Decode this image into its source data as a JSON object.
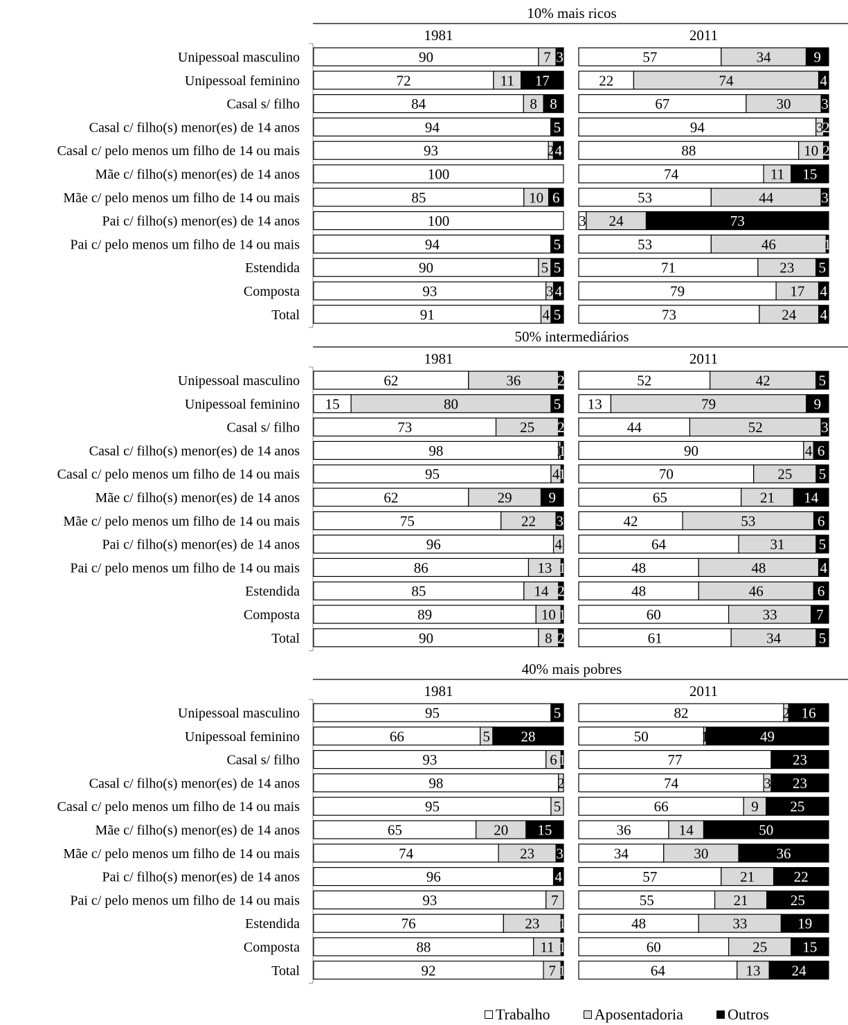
{
  "chart_data": {
    "type": "bar",
    "stacked": true,
    "orientation": "horizontal",
    "categories": [
      "Unipessoal masculino",
      "Unipessoal feminino",
      "Casal s/ filho",
      "Casal c/ filho(s) menor(es) de 14 anos",
      "Casal c/ pelo menos um filho de 14 ou mais",
      "Mãe c/ filho(s) menor(es) de 14 anos",
      "Mãe c/ pelo menos um filho de 14 ou mais",
      "Pai c/ filho(s) menor(es) de 14 anos",
      "Pai c/ pelo menos um filho de 14 ou mais",
      "Estendida",
      "Composta",
      "Total"
    ],
    "series_names": [
      "Trabalho",
      "Aposentadoria",
      "Outros"
    ],
    "colors": {
      "Trabalho": "#ffffff",
      "Aposentadoria": "#d9d9d9",
      "Outros": "#000000"
    },
    "xlim": [
      0,
      100
    ],
    "legend_position": "bottom-right",
    "panels": [
      {
        "title": "10% mais ricos",
        "years": [
          {
            "label": "1981",
            "rows": [
              [
                90,
                7,
                3
              ],
              [
                72,
                11,
                17
              ],
              [
                84,
                8,
                8
              ],
              [
                94,
                0,
                5
              ],
              [
                93,
                2,
                4
              ],
              [
                100,
                0,
                0
              ],
              [
                85,
                10,
                6
              ],
              [
                100,
                0,
                0
              ],
              [
                94,
                0,
                5
              ],
              [
                90,
                5,
                5
              ],
              [
                93,
                3,
                4
              ],
              [
                91,
                4,
                5
              ]
            ]
          },
          {
            "label": "2011",
            "rows": [
              [
                57,
                34,
                9
              ],
              [
                22,
                74,
                4
              ],
              [
                67,
                30,
                3
              ],
              [
                94,
                3,
                2
              ],
              [
                88,
                10,
                2
              ],
              [
                74,
                11,
                15
              ],
              [
                53,
                44,
                3
              ],
              [
                3,
                24,
                73
              ],
              [
                53,
                46,
                1
              ],
              [
                71,
                23,
                5
              ],
              [
                79,
                17,
                4
              ],
              [
                73,
                24,
                4
              ]
            ]
          }
        ]
      },
      {
        "title": "50% intermediários",
        "years": [
          {
            "label": "1981",
            "rows": [
              [
                62,
                36,
                2
              ],
              [
                15,
                80,
                5
              ],
              [
                73,
                25,
                2
              ],
              [
                98,
                1,
                1
              ],
              [
                95,
                4,
                1
              ],
              [
                62,
                29,
                9
              ],
              [
                75,
                22,
                3
              ],
              [
                96,
                4,
                0
              ],
              [
                86,
                13,
                1
              ],
              [
                85,
                14,
                2
              ],
              [
                89,
                10,
                1
              ],
              [
                90,
                8,
                2
              ]
            ]
          },
          {
            "label": "2011",
            "rows": [
              [
                52,
                42,
                5
              ],
              [
                13,
                79,
                9
              ],
              [
                44,
                52,
                3
              ],
              [
                90,
                4,
                6
              ],
              [
                70,
                25,
                5
              ],
              [
                65,
                21,
                14
              ],
              [
                42,
                53,
                6
              ],
              [
                64,
                31,
                5
              ],
              [
                48,
                48,
                4
              ],
              [
                48,
                46,
                6
              ],
              [
                60,
                33,
                7
              ],
              [
                61,
                34,
                5
              ]
            ]
          }
        ]
      },
      {
        "title": "40% mais pobres",
        "years": [
          {
            "label": "1981",
            "rows": [
              [
                95,
                0,
                5
              ],
              [
                66,
                5,
                28
              ],
              [
                93,
                6,
                1
              ],
              [
                98,
                2,
                0
              ],
              [
                95,
                5,
                0
              ],
              [
                65,
                20,
                15
              ],
              [
                74,
                23,
                3
              ],
              [
                96,
                0,
                4
              ],
              [
                93,
                7,
                0
              ],
              [
                76,
                23,
                1
              ],
              [
                88,
                11,
                1
              ],
              [
                92,
                7,
                1
              ]
            ]
          },
          {
            "label": "2011",
            "rows": [
              [
                82,
                2,
                16
              ],
              [
                50,
                1,
                49
              ],
              [
                77,
                0,
                23
              ],
              [
                74,
                3,
                23
              ],
              [
                66,
                9,
                25
              ],
              [
                36,
                14,
                50
              ],
              [
                34,
                30,
                36
              ],
              [
                57,
                21,
                22
              ],
              [
                55,
                21,
                25
              ],
              [
                48,
                33,
                19
              ],
              [
                60,
                25,
                15
              ],
              [
                64,
                13,
                24
              ]
            ]
          }
        ]
      }
    ]
  },
  "legend": {
    "items": [
      {
        "name": "Trabalho",
        "color": "#ffffff"
      },
      {
        "name": "Aposentadoria",
        "color": "#d9d9d9"
      },
      {
        "name": "Outros",
        "color": "#000000"
      }
    ]
  }
}
